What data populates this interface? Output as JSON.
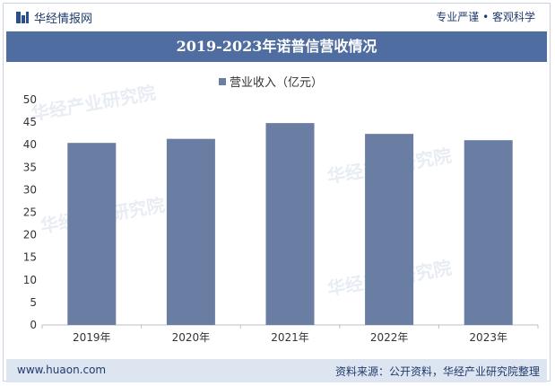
{
  "header": {
    "brand": "华经情报网",
    "slogan": "专业严谨 • 客观科学"
  },
  "watermark": "华经产业研究院",
  "footer": {
    "site": "www.huaon.com",
    "source": "资料来源：公开资料，华经产业研究院整理"
  },
  "colors": {
    "bar": "#6a7da3",
    "title_band": "#4f6da0",
    "footer_band": "#dde5f1",
    "axis": "#bfbfbf"
  },
  "chart_data": {
    "type": "bar",
    "title": "2019-2023年诺普信营收情况",
    "categories": [
      "2019年",
      "2020年",
      "2021年",
      "2022年",
      "2023年"
    ],
    "series": [
      {
        "name": "营业收入（亿元）",
        "values": [
          40.4,
          41.3,
          44.8,
          42.4,
          41.0
        ]
      }
    ],
    "ylim": [
      0,
      50
    ],
    "yticks": [
      "0",
      "5",
      "10",
      "15",
      "20",
      "25",
      "30",
      "35",
      "40",
      "45",
      "50"
    ],
    "legend": "top-center",
    "grid": false
  }
}
